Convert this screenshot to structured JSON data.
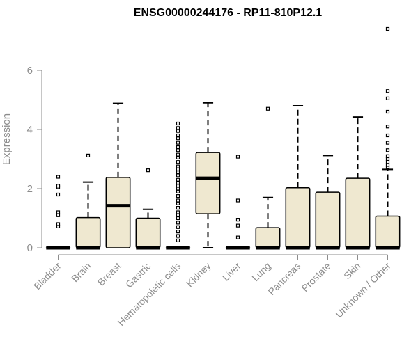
{
  "chart_data": {
    "type": "boxplot",
    "title": "ENSG00000244176 - RP11-810P12.1",
    "ylabel": "Expression",
    "xlabel": "",
    "ylim": [
      0,
      7.4
    ],
    "yticks": [
      0,
      2,
      4,
      6
    ],
    "grid": false,
    "box_fill": "#efe8d0",
    "box_stroke": "#000000",
    "categories": [
      "Bladder",
      "Brain",
      "Breast",
      "Gastric",
      "Hematopoietic cells",
      "Kidney",
      "Liver",
      "Lung",
      "Pancreas",
      "Prostate",
      "Skin",
      "Unknown / Other"
    ],
    "boxes": [
      {
        "min": 0,
        "q1": 0,
        "median": 0,
        "q3": 0,
        "max": 0,
        "outliers": [
          0.72,
          0.8,
          1.1,
          1.2,
          1.8,
          2.05,
          2.1,
          2.4
        ]
      },
      {
        "min": 0,
        "q1": 0,
        "median": 0,
        "q3": 1.02,
        "max": 2.22,
        "outliers": [
          3.12
        ]
      },
      {
        "min": 0,
        "q1": 0,
        "median": 1.42,
        "q3": 2.38,
        "max": 4.88,
        "outliers": []
      },
      {
        "min": 0,
        "q1": 0,
        "median": 0,
        "q3": 1.0,
        "max": 1.3,
        "outliers": [
          2.62
        ]
      },
      {
        "min": 0,
        "q1": 0,
        "median": 0,
        "q3": 0,
        "max": 0,
        "outliers": [
          0.25,
          0.4,
          0.55,
          0.7,
          0.85,
          1.0,
          1.1,
          1.2,
          1.35,
          1.5,
          1.6,
          1.75,
          1.9,
          2.0,
          2.1,
          2.2,
          2.3,
          2.45,
          2.55,
          2.65,
          2.75,
          2.9,
          3.05,
          3.15,
          3.3,
          3.4,
          3.55,
          3.7,
          3.8,
          3.95,
          4.05,
          4.2
        ]
      },
      {
        "min": 0,
        "q1": 1.15,
        "median": 2.35,
        "q3": 3.22,
        "max": 4.9,
        "outliers": []
      },
      {
        "min": 0,
        "q1": 0,
        "median": 0,
        "q3": 0,
        "max": 0,
        "outliers": [
          0.35,
          0.75,
          0.95,
          1.6,
          3.08
        ]
      },
      {
        "min": 0,
        "q1": 0,
        "median": 0,
        "q3": 0.68,
        "max": 1.7,
        "outliers": [
          4.7
        ]
      },
      {
        "min": 0,
        "q1": 0,
        "median": 0,
        "q3": 2.03,
        "max": 4.8,
        "outliers": []
      },
      {
        "min": 0,
        "q1": 0,
        "median": 0,
        "q3": 1.88,
        "max": 3.12,
        "outliers": []
      },
      {
        "min": 0,
        "q1": 0,
        "median": 0,
        "q3": 2.35,
        "max": 4.42,
        "outliers": []
      },
      {
        "min": 0,
        "q1": 0,
        "median": 0,
        "q3": 1.07,
        "max": 2.65,
        "outliers": [
          2.72,
          2.8,
          2.9,
          3.0,
          3.1,
          3.3,
          3.55,
          3.8,
          4.1,
          4.6,
          5.05,
          5.3,
          7.4
        ]
      }
    ]
  }
}
